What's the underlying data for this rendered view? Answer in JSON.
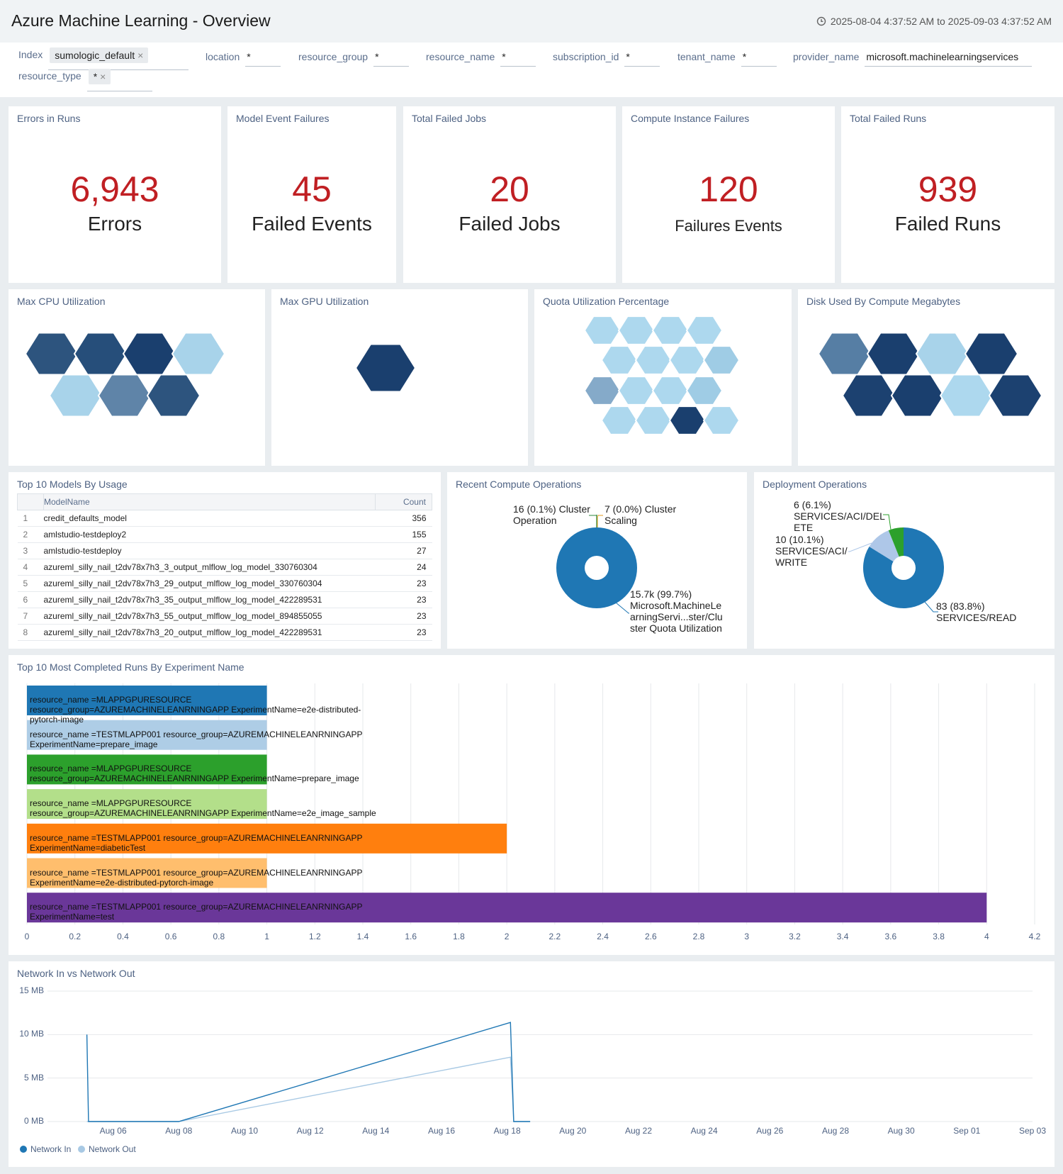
{
  "header": {
    "title": "Azure Machine Learning - Overview",
    "time_range": "2025-08-04 4:37:52 AM to 2025-09-03 4:37:52 AM"
  },
  "filters": {
    "index": {
      "label": "Index",
      "value": "sumologic_default"
    },
    "location": {
      "label": "location",
      "value": "*"
    },
    "resource_group": {
      "label": "resource_group",
      "value": "*"
    },
    "resource_name": {
      "label": "resource_name",
      "value": "*"
    },
    "subscription_id": {
      "label": "subscription_id",
      "value": "*"
    },
    "tenant_name": {
      "label": "tenant_name",
      "value": "*"
    },
    "provider_name": {
      "label": "provider_name",
      "value": "microsoft.machinelearningservices"
    },
    "resource_type": {
      "label": "resource_type",
      "value": "*"
    }
  },
  "kpis": [
    {
      "title": "Errors in Runs",
      "value": "6,943",
      "unit": "Errors"
    },
    {
      "title": "Model Event Failures",
      "value": "45",
      "unit": "Failed Events"
    },
    {
      "title": "Total Failed Jobs",
      "value": "20",
      "unit": "Failed Jobs"
    },
    {
      "title": "Compute Instance Failures",
      "value": "120",
      "unit": "Failures Events"
    },
    {
      "title": "Total Failed Runs",
      "value": "939",
      "unit": "Failed Runs"
    }
  ],
  "honeycombs": [
    {
      "title": "Max CPU Utilization",
      "colors": [
        "#2d547e",
        "#264e7a",
        "#1a3f6e",
        "#a8d3ea",
        "#a8d3ea",
        "#5f84a8",
        "#2d547e"
      ]
    },
    {
      "title": "Max GPU Utilization",
      "colors": [
        "#1a3f6e"
      ]
    },
    {
      "title": "Quota Utilization Percentage",
      "colors": [
        "#add8ee",
        "#add8ee",
        "#add8ee",
        "#add8ee",
        "#add8ee",
        "#add8ee",
        "#add8ee",
        "#9fcce5",
        "#85aac9",
        "#add8ee",
        "#add8ee",
        "#9fcce5",
        "#add8ee",
        "#add8ee",
        "#1a3f6e",
        "#add8ee"
      ]
    },
    {
      "title": "Disk Used By Compute Megabytes",
      "colors": [
        "#567ea4",
        "#1a3f6e",
        "#a8d3ea",
        "#1a3f6e",
        "#1c4170",
        "#1a3f6e",
        "#add8ee",
        "#1c4170"
      ]
    }
  ],
  "models_table": {
    "title": "Top 10 Models By Usage",
    "columns": [
      "ModelName",
      "Count"
    ],
    "rows": [
      {
        "n": "1",
        "name": "credit_defaults_model",
        "count": "356"
      },
      {
        "n": "2",
        "name": "amlstudio-testdeploy2",
        "count": "155"
      },
      {
        "n": "3",
        "name": "amlstudio-testdeploy",
        "count": "27"
      },
      {
        "n": "4",
        "name": "azureml_silly_nail_t2dv78x7h3_3_output_mlflow_log_model_330760304",
        "count": "24"
      },
      {
        "n": "5",
        "name": "azureml_silly_nail_t2dv78x7h3_29_output_mlflow_log_model_330760304",
        "count": "23"
      },
      {
        "n": "6",
        "name": "azureml_silly_nail_t2dv78x7h3_35_output_mlflow_log_model_422289531",
        "count": "23"
      },
      {
        "n": "7",
        "name": "azureml_silly_nail_t2dv78x7h3_55_output_mlflow_log_model_894855055",
        "count": "23"
      },
      {
        "n": "8",
        "name": "azureml_silly_nail_t2dv78x7h3_20_output_mlflow_log_model_422289531",
        "count": "23"
      }
    ]
  },
  "compute_ops": {
    "title": "Recent Compute Operations",
    "slices": [
      {
        "label": "16 (0.1%) Cluster Operation",
        "value": 16,
        "color": "#2c8a3e"
      },
      {
        "label": "7 (0.0%) Cluster Scaling",
        "value": 7,
        "color": "#e39a1b"
      },
      {
        "label": "15.7k (99.7%) Microsoft.MachineLearningServi...ster/Cluster Quota Utilization",
        "value": 15700,
        "color": "#1f77b4"
      }
    ]
  },
  "deploy_ops": {
    "title": "Deployment Operations",
    "slices": [
      {
        "label": "6 (6.1%) SERVICES/ACI/DELETE",
        "value": 6,
        "color": "#2ca02c"
      },
      {
        "label": "10 (10.1%) SERVICES/ACI/WRITE",
        "value": 10,
        "color": "#aec7e8"
      },
      {
        "label": "83 (83.8%) SERVICES/READ",
        "value": 83,
        "color": "#1f77b4"
      }
    ]
  },
  "runs_chart": {
    "title": "Top 10 Most Completed Runs By Experiment Name",
    "chart_data": {
      "type": "bar",
      "orientation": "horizontal",
      "categories": [
        "resource_name =MLAPPGPURESOURCE resource_group=AZUREMACHINELEANRNINGAPP ExperimentName=e2e-distributed-pytorch-image",
        "resource_name =TESTMLAPP001 resource_group=AZUREMACHINELEANRNINGAPP ExperimentName=prepare_image",
        "resource_name =MLAPPGPURESOURCE resource_group=AZUREMACHINELEANRNINGAPP ExperimentName=prepare_image",
        "resource_name =MLAPPGPURESOURCE resource_group=AZUREMACHINELEANRNINGAPP ExperimentName=e2e_image_sample",
        "resource_name =TESTMLAPP001 resource_group=AZUREMACHINELEANRNINGAPP ExperimentName=diabeticTest",
        "resource_name =TESTMLAPP001 resource_group=AZUREMACHINELEANRNINGAPP ExperimentName=e2e-distributed-pytorch-image",
        "resource_name =TESTMLAPP001 resource_group=AZUREMACHINELEANRNINGAPP ExperimentName=test"
      ],
      "values": [
        1,
        1,
        1,
        1,
        2,
        1,
        4
      ],
      "colors": [
        "#1f77b4",
        "#aecde6",
        "#2ca02c",
        "#b3df8a",
        "#ff7f0e",
        "#ffbe6d",
        "#6a3799"
      ],
      "xlim": [
        0,
        4.2
      ],
      "xticks": [
        "0",
        "0.2",
        "0.4",
        "0.6",
        "0.8",
        "1",
        "1.2",
        "1.4",
        "1.6",
        "1.8",
        "2",
        "2.2",
        "2.4",
        "2.6",
        "2.8",
        "3",
        "3.2",
        "3.4",
        "3.6",
        "3.8",
        "4",
        "4.2"
      ]
    }
  },
  "network_chart": {
    "title": "Network In vs Network Out",
    "chart_data": {
      "type": "line",
      "ylim": [
        0,
        15
      ],
      "yticks": [
        "15 MB",
        "10 MB",
        "5 MB",
        "0 MB"
      ],
      "xticks": [
        "Aug 06",
        "Aug 08",
        "Aug 10",
        "Aug 12",
        "Aug 14",
        "Aug 16",
        "Aug 18",
        "Aug 20",
        "Aug 22",
        "Aug 24",
        "Aug 26",
        "Aug 28",
        "Aug 30",
        "Sep 01",
        "Sep 03"
      ],
      "series": [
        {
          "name": "Network In",
          "color": "#1f77b4",
          "points": [
            [
              5.2,
              10
            ],
            [
              5.25,
              0
            ],
            [
              8.0,
              0
            ],
            [
              18.1,
              11.4
            ],
            [
              18.2,
              0
            ],
            [
              18.7,
              0
            ]
          ]
        },
        {
          "name": "Network Out",
          "color": "#a8c9e4",
          "points": [
            [
              5.2,
              0
            ],
            [
              8.0,
              0
            ],
            [
              18.1,
              7.4
            ],
            [
              18.2,
              0
            ],
            [
              18.7,
              0
            ]
          ]
        }
      ]
    }
  }
}
